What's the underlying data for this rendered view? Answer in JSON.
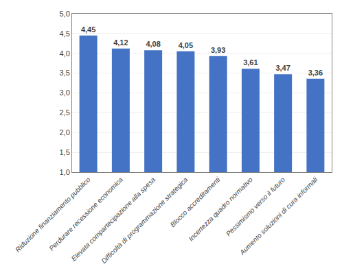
{
  "chart_data": {
    "type": "bar",
    "categories": [
      "Riduzione finanziamento pubblico",
      "Perdurare recessione economica",
      "Elevata compartecipazione alla spesa",
      "Difficoltà di programmazione strategica",
      "Blocco accreditamenti",
      "Incertezza quadro normativo",
      "Pessimismo verso il futuro",
      "Aumento soluzioni di cura informali"
    ],
    "values": [
      4.45,
      4.12,
      4.08,
      4.05,
      3.93,
      3.61,
      3.47,
      3.36
    ],
    "value_labels": [
      "4,45",
      "4,12",
      "4,08",
      "4,05",
      "3,93",
      "3,61",
      "3,47",
      "3,36"
    ],
    "data_labels": true,
    "color": "#4472C4",
    "ylim": [
      1.0,
      5.0
    ],
    "yticks": [
      {
        "value": 1.0,
        "label": "1,0"
      },
      {
        "value": 1.5,
        "label": "1,5"
      },
      {
        "value": 2.0,
        "label": "2,0"
      },
      {
        "value": 2.5,
        "label": "2,5"
      },
      {
        "value": 3.0,
        "label": "3,0"
      },
      {
        "value": 3.5,
        "label": "3,5"
      },
      {
        "value": 4.0,
        "label": "4,0"
      },
      {
        "value": 4.5,
        "label": "4,5"
      },
      {
        "value": 5.0,
        "label": "5,0"
      }
    ],
    "grid": true
  }
}
